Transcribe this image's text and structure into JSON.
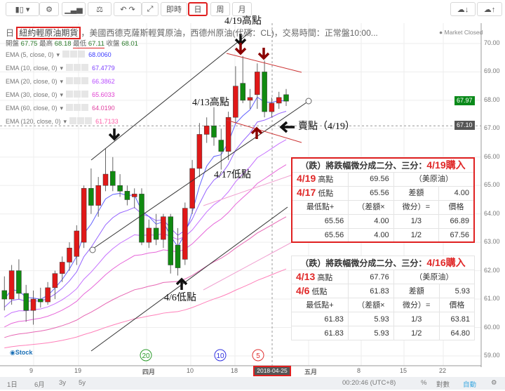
{
  "toolbar": {
    "intraday": "即時",
    "day": "日",
    "week": "周",
    "month": "月",
    "selected": "日"
  },
  "header": {
    "prefix": "日",
    "title_highlight": "紐約輕原油期貨",
    "title_rest": "，美國西德克薩斯輕質原油，西德州原油(代碼：CL)，交易時間：正常盤10:00...",
    "status": "Market Closed",
    "ohlc": {
      "open_label": "開盤",
      "open": "67.75",
      "high_label": "最高",
      "high": "68.18",
      "low_label": "最低",
      "low": "67.11",
      "close_label": "收盤",
      "close": "68.01"
    }
  },
  "emas": [
    {
      "label": "EMA (5, close, 0)",
      "value": "68.0060",
      "color": "#3b3bff"
    },
    {
      "label": "EMA (10, close, 0)",
      "value": "67.4779",
      "color": "#7a3cff"
    },
    {
      "label": "EMA (20, close, 0)",
      "value": "66.3862",
      "color": "#b84dff"
    },
    {
      "label": "EMA (30, close, 0)",
      "value": "65.6033",
      "color": "#e040d0"
    },
    {
      "label": "EMA (60, close, 0)",
      "value": "64.0190",
      "color": "#e040a0"
    },
    {
      "label": "EMA (120, close, 0)",
      "value": "61.7133",
      "color": "#ff5fa8"
    }
  ],
  "annotations": {
    "high_419": "4/19高點",
    "high_413": "4/13高點",
    "low_417": "4/17低點",
    "low_46": "4/6低點",
    "sell": "賣點（4/19）"
  },
  "table1": {
    "title": "（跌）將跌幅微分成二分、三分：",
    "title_red": "4/19購入",
    "r1": {
      "date": "4/19",
      "label": "高點",
      "value": "69.56",
      "note": "（美原油）"
    },
    "r2": {
      "date": "4/17",
      "label": "低點",
      "value": "65.56",
      "diff_label": "差額",
      "diff": "4.00"
    },
    "head": [
      "最低點+",
      "（差額×",
      "微分）=",
      "價格"
    ],
    "rows": [
      [
        "65.56",
        "4.00",
        "1/3",
        "66.89"
      ],
      [
        "65.56",
        "4.00",
        "1/2",
        "67.56"
      ]
    ]
  },
  "table2": {
    "title": "（跌）將跌幅微分成二分、三分：",
    "title_red": "4/16購入",
    "r1": {
      "date": "4/13",
      "label": "高點",
      "value": "67.76",
      "note": "（美原油）"
    },
    "r2": {
      "date": "4/6",
      "label": "低點",
      "value": "61.83",
      "diff_label": "差額",
      "diff": "5.93"
    },
    "head": [
      "最低點+",
      "（差額×",
      "微分）=",
      "價格"
    ],
    "rows": [
      [
        "61.83",
        "5.93",
        "1/3",
        "63.81"
      ],
      [
        "61.83",
        "5.93",
        "1/2",
        "64.80"
      ]
    ]
  },
  "price_axis": {
    "ticks": [
      "70.00",
      "69.00",
      "68.00",
      "67.00",
      "66.00",
      "65.00",
      "64.00",
      "63.00",
      "62.00",
      "61.00",
      "60.00",
      "59.00"
    ],
    "last_price": "67.97",
    "crosshair_price": "67.10"
  },
  "x_axis": {
    "labels": [
      "9",
      "19",
      "四月",
      "10",
      "18",
      "五月",
      "8",
      "15",
      "22"
    ],
    "cursor_date": "2018-04-25"
  },
  "circles": [
    "20",
    "10",
    "5"
  ],
  "footer": {
    "ranges": [
      "1日",
      "6月",
      "3y",
      "5y"
    ],
    "time": "00:20:46 (UTC+8)",
    "pct": "%",
    "log": "對數",
    "auto": "自動"
  },
  "colors": {
    "up": "#e01818",
    "down": "#108a10",
    "accent_red": "#e02020"
  },
  "chart_data": {
    "type": "candlestick",
    "ylim": [
      59,
      70.5
    ],
    "candles": [
      [
        61.3,
        61.8,
        60.6,
        61.0
      ],
      [
        61.0,
        62.2,
        60.8,
        62.0
      ],
      [
        62.0,
        62.4,
        61.0,
        61.2
      ],
      [
        61.2,
        61.5,
        60.2,
        60.6
      ],
      [
        60.6,
        61.3,
        60.1,
        61.0
      ],
      [
        61.0,
        61.4,
        60.7,
        60.9
      ],
      [
        60.9,
        61.6,
        60.8,
        61.4
      ],
      [
        61.4,
        62.0,
        61.0,
        61.9
      ],
      [
        61.9,
        62.5,
        61.6,
        62.3
      ],
      [
        62.3,
        63.0,
        62.0,
        62.8
      ],
      [
        62.5,
        63.6,
        62.2,
        63.4
      ],
      [
        63.0,
        65.0,
        62.8,
        64.9
      ],
      [
        64.9,
        65.6,
        64.0,
        64.3
      ],
      [
        64.3,
        65.3,
        63.9,
        65.0
      ],
      [
        65.0,
        66.3,
        64.8,
        65.4
      ],
      [
        65.5,
        66.0,
        64.8,
        65.0
      ],
      [
        65.0,
        65.4,
        64.6,
        64.8
      ],
      [
        64.8,
        65.0,
        64.3,
        64.5
      ],
      [
        64.6,
        64.9,
        64.2,
        64.7
      ],
      [
        64.7,
        64.9,
        62.9,
        63.0
      ],
      [
        63.0,
        63.8,
        62.8,
        63.5
      ],
      [
        63.5,
        64.0,
        62.9,
        63.1
      ],
      [
        63.1,
        64.0,
        62.8,
        63.9
      ],
      [
        63.9,
        64.0,
        61.9,
        62.2
      ],
      [
        62.9,
        63.5,
        61.83,
        62.1
      ],
      [
        62.4,
        64.4,
        62.2,
        64.2
      ],
      [
        64.2,
        65.9,
        64.0,
        65.6
      ],
      [
        65.6,
        67.2,
        65.3,
        66.8
      ],
      [
        66.8,
        67.4,
        66.5,
        67.1
      ],
      [
        67.1,
        67.76,
        66.4,
        66.7
      ],
      [
        66.6,
        67.0,
        65.56,
        66.2
      ],
      [
        66.2,
        67.6,
        65.9,
        67.4
      ],
      [
        67.4,
        69.2,
        67.2,
        68.5
      ],
      [
        68.6,
        69.56,
        67.9,
        68.0
      ],
      [
        68.0,
        68.4,
        67.7,
        68.1
      ],
      [
        68.2,
        69.3,
        67.7,
        69.0
      ],
      [
        69.0,
        69.4,
        67.4,
        67.6
      ],
      [
        67.6,
        68.1,
        67.4,
        67.9
      ],
      [
        67.9,
        68.3,
        67.7,
        68.1
      ],
      [
        68.2,
        68.4,
        67.8,
        67.97
      ]
    ]
  }
}
